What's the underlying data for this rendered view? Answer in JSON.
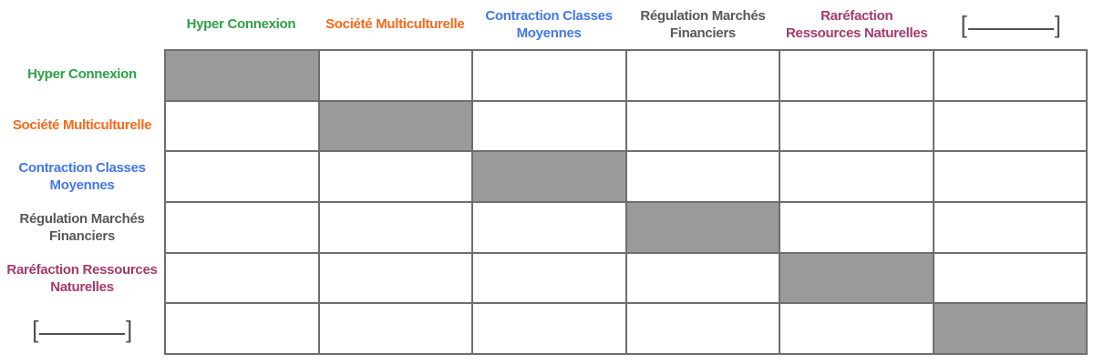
{
  "page": {
    "background": "#FFFFFF"
  },
  "matrix_widget": {
    "factors": [
      {
        "id": "hyper-connexion",
        "col_label": "Hyper Connexion",
        "row_label": "Hyper Connexion",
        "color": "#2EA047",
        "is_blank": false
      },
      {
        "id": "societe-multiculturelle",
        "col_label": "Société Multiculturelle",
        "row_label": "Société Multiculturelle",
        "color": "#F8691A",
        "is_blank": false
      },
      {
        "id": "contraction-classes-moyennes",
        "col_label": "Contraction Classes\nMoyennes",
        "row_label": "Contraction Classes\nMoyennes",
        "color": "#4477E8",
        "is_blank": false
      },
      {
        "id": "regulation-marches-financiers",
        "col_label": "Régulation Marchés\nFinanciers",
        "row_label": "Régulation Marchés\nFinanciers",
        "color": "#58585A",
        "is_blank": false
      },
      {
        "id": "rarefaction-ressources-naturelles",
        "col_label": "Raréfaction\nRessources Naturelles",
        "row_label": "Raréfaction Ressources\nNaturelles",
        "color": "#A33A6A",
        "is_blank": false
      },
      {
        "id": "blank-slot",
        "col_label": "",
        "row_label": "",
        "color": "#515151",
        "is_blank": true,
        "bracket_open": "[",
        "bracket_close": "]"
      }
    ],
    "grid": {
      "rows": 6,
      "cols": 6,
      "filled_cells": [
        [
          0,
          0
        ],
        [
          1,
          1
        ],
        [
          2,
          2
        ],
        [
          3,
          3
        ],
        [
          4,
          4
        ],
        [
          5,
          5
        ]
      ],
      "fill_color": "#9A9A9A",
      "border_color": "#6E6E6E",
      "cell_background": "#FFFFFF"
    }
  }
}
